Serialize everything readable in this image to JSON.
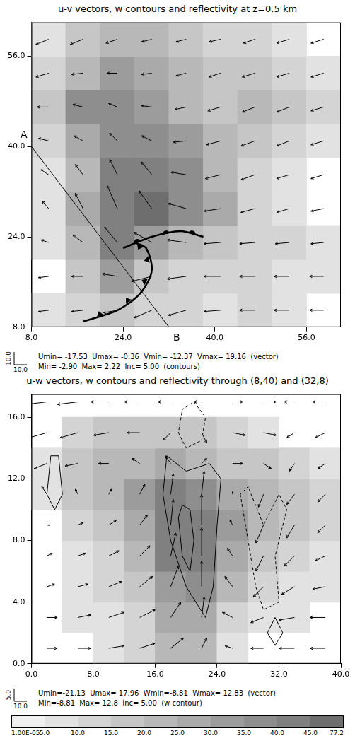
{
  "chart_data": [
    {
      "type": "quiver",
      "title": "u-v vectors, w contours and reflectivity at z=0.5 km",
      "xlim": [
        8,
        62
      ],
      "ylim": [
        8,
        62
      ],
      "xticks": [
        {
          "value": 8,
          "label": "8.0"
        },
        {
          "value": 24,
          "label": "24.0"
        },
        {
          "value": 40,
          "label": "40.0"
        },
        {
          "value": 56,
          "label": "56.0"
        }
      ],
      "yticks": [
        {
          "value": 8,
          "label": "8.0"
        },
        {
          "value": 24,
          "label": "24.0"
        },
        {
          "value": 40,
          "label": "40.0"
        },
        {
          "value": 56,
          "label": "56.0"
        }
      ],
      "grid": false,
      "reflectivity": {
        "x_edges": [
          8,
          14,
          20,
          26,
          32,
          38,
          44,
          50,
          56,
          62
        ],
        "y_edges": [
          8,
          14,
          20,
          26,
          32,
          38,
          44,
          50,
          56,
          62
        ],
        "values": [
          [
            5,
            10,
            15,
            10,
            10,
            5,
            10,
            5,
            0
          ],
          [
            0,
            15,
            30,
            15,
            10,
            10,
            10,
            5,
            5
          ],
          [
            5,
            20,
            40,
            30,
            20,
            15,
            10,
            10,
            5
          ],
          [
            5,
            25,
            40,
            45,
            35,
            25,
            10,
            5,
            0
          ],
          [
            5,
            20,
            40,
            40,
            35,
            20,
            10,
            5,
            0
          ],
          [
            10,
            25,
            35,
            35,
            30,
            20,
            15,
            10,
            5
          ],
          [
            15,
            35,
            35,
            30,
            20,
            15,
            20,
            15,
            10
          ],
          [
            10,
            20,
            30,
            25,
            20,
            15,
            15,
            10,
            5
          ],
          [
            5,
            15,
            20,
            20,
            15,
            10,
            10,
            5,
            0
          ]
        ]
      },
      "vectors": {
        "x": [
          11,
          17,
          23,
          29,
          35,
          41,
          47,
          53,
          59
        ],
        "y": [
          11,
          17,
          23,
          29,
          35,
          41,
          47,
          53,
          59
        ],
        "u": [
          [
            -8,
            -9,
            -11,
            -14,
            -14,
            -13,
            -12,
            -12,
            -11
          ],
          [
            -8,
            -9,
            -12,
            -16,
            -15,
            -13,
            -12,
            -12,
            -11
          ],
          [
            -6,
            -8,
            -10,
            -14,
            -15,
            -13,
            -12,
            -11,
            -10
          ],
          [
            -5,
            -6,
            -8,
            -10,
            -14,
            -13,
            -11,
            -10,
            -10
          ],
          [
            -6,
            -6,
            -6,
            -8,
            -12,
            -12,
            -11,
            -10,
            -10
          ],
          [
            -8,
            -7,
            -6,
            -8,
            -10,
            -11,
            -11,
            -10,
            -10
          ],
          [
            -9,
            -8,
            -7,
            -8,
            -9,
            -10,
            -10,
            -10,
            -10
          ],
          [
            -10,
            -9,
            -8,
            -8,
            -8,
            -9,
            -10,
            -10,
            -10
          ],
          [
            -10,
            -10,
            -9,
            -8,
            -8,
            -9,
            -9,
            -10,
            -10
          ]
        ],
        "v": [
          [
            -1,
            -1,
            -2,
            -6,
            -4,
            -1,
            0,
            0,
            0
          ],
          [
            -1,
            0,
            2,
            -4,
            -2,
            0,
            0,
            0,
            0
          ],
          [
            2,
            6,
            12,
            8,
            2,
            -1,
            -1,
            -1,
            -1
          ],
          [
            6,
            12,
            18,
            14,
            4,
            -2,
            -3,
            -3,
            -2
          ],
          [
            4,
            8,
            12,
            10,
            2,
            -3,
            -4,
            -3,
            -3
          ],
          [
            2,
            4,
            6,
            4,
            -1,
            -3,
            -4,
            -4,
            -3
          ],
          [
            0,
            2,
            3,
            1,
            -2,
            -3,
            -4,
            -4,
            -3
          ],
          [
            -3,
            -1,
            0,
            -1,
            -2,
            -3,
            -3,
            -3,
            -3
          ],
          [
            -4,
            -4,
            -3,
            -2,
            -2,
            -2,
            -3,
            -3,
            -3
          ]
        ]
      },
      "vector_key": {
        "horizontal": {
          "value": 10,
          "label": "10.0"
        },
        "vertical": {
          "value": 10,
          "label": "10.0"
        }
      },
      "section": {
        "points": [
          [
            8,
            40
          ],
          [
            32,
            8
          ]
        ],
        "labels": [
          "A",
          "B"
        ]
      },
      "fronts": [
        {
          "marker": "triangle",
          "points": [
            [
              17,
              9
            ],
            [
              23,
              11
            ],
            [
              27,
              14
            ],
            [
              29,
              18
            ],
            [
              28,
              22
            ],
            [
              26,
              23
            ]
          ]
        },
        {
          "marker": "semicircle",
          "points": [
            [
              24,
              22
            ],
            [
              29,
              24
            ],
            [
              34,
              25
            ],
            [
              38,
              24
            ]
          ]
        }
      ],
      "contours": [],
      "vector_stats": [
        "Umin= -17.53",
        "Umax= -0.36",
        "Vmin= -12.37",
        "Vmax= 19.16",
        "(vector)"
      ],
      "contour_stats": [
        "Min= -2.90",
        "Max= 2.22",
        "Inc= 5.00",
        "(contours)"
      ]
    },
    {
      "type": "quiver",
      "title": "u-w vectors, w contours and reflectivity through (8,40) and (32,8)",
      "xlim": [
        0,
        40
      ],
      "ylim": [
        0,
        17.5
      ],
      "xticks": [
        {
          "value": 0,
          "label": "0.0"
        },
        {
          "value": 8,
          "label": "8.0"
        },
        {
          "value": 16,
          "label": "16.0"
        },
        {
          "value": 24,
          "label": "24.0"
        },
        {
          "value": 32,
          "label": "32.0"
        },
        {
          "value": 40,
          "label": "40.0"
        }
      ],
      "yticks": [
        {
          "value": 0,
          "label": "0.0"
        },
        {
          "value": 4,
          "label": "4.0"
        },
        {
          "value": 8,
          "label": "8.0"
        },
        {
          "value": 12,
          "label": "12.0"
        },
        {
          "value": 16,
          "label": "16.0"
        }
      ],
      "grid": false,
      "reflectivity": {
        "x_edges": [
          0,
          4,
          8,
          12,
          16,
          20,
          24,
          28,
          32,
          36,
          40
        ],
        "y_edges": [
          0,
          2,
          4,
          6,
          8,
          10,
          12,
          14,
          16
        ],
        "values": [
          [
            0,
            0,
            5,
            10,
            20,
            20,
            5,
            0,
            0,
            0
          ],
          [
            0,
            5,
            5,
            10,
            25,
            25,
            10,
            5,
            5,
            0
          ],
          [
            0,
            5,
            10,
            15,
            30,
            35,
            20,
            10,
            5,
            5
          ],
          [
            0,
            5,
            10,
            20,
            40,
            40,
            25,
            15,
            10,
            5
          ],
          [
            0,
            10,
            15,
            25,
            40,
            40,
            30,
            20,
            15,
            10
          ],
          [
            5,
            15,
            20,
            30,
            40,
            35,
            25,
            20,
            15,
            10
          ],
          [
            5,
            15,
            20,
            20,
            25,
            20,
            15,
            15,
            10,
            5
          ],
          [
            0,
            10,
            15,
            15,
            15,
            15,
            10,
            5,
            0,
            0
          ]
        ]
      },
      "vectors": {
        "x": [
          2,
          6,
          10,
          14,
          18,
          22,
          26,
          30,
          34,
          38
        ],
        "y": [
          1,
          3,
          5,
          7,
          9,
          11,
          13,
          15,
          17
        ],
        "u": [
          [
            8,
            10,
            12,
            12,
            10,
            4,
            -6,
            -10,
            -12,
            -12
          ],
          [
            8,
            10,
            12,
            12,
            8,
            2,
            -8,
            -10,
            -12,
            -12
          ],
          [
            6,
            8,
            10,
            10,
            6,
            0,
            -6,
            -8,
            -10,
            -10
          ],
          [
            4,
            6,
            8,
            8,
            4,
            0,
            -4,
            -6,
            -8,
            -8
          ],
          [
            2,
            4,
            6,
            6,
            2,
            0,
            -2,
            -6,
            -6,
            -6
          ],
          [
            -4,
            -2,
            2,
            4,
            2,
            2,
            0,
            -4,
            -6,
            -6
          ],
          [
            -10,
            -10,
            -8,
            -6,
            -4,
            4,
            8,
            6,
            -4,
            -6
          ],
          [
            -14,
            -14,
            -12,
            -10,
            -6,
            4,
            10,
            10,
            -6,
            -8
          ],
          [
            -16,
            -16,
            -14,
            -12,
            -10,
            -6,
            8,
            10,
            -8,
            -10
          ]
        ],
        "w": [
          [
            0,
            0,
            1,
            2,
            4,
            4,
            1,
            0,
            0,
            0
          ],
          [
            0,
            1,
            2,
            3,
            6,
            8,
            2,
            -2,
            -1,
            0
          ],
          [
            1,
            1,
            2,
            4,
            8,
            10,
            4,
            -4,
            -3,
            -1
          ],
          [
            1,
            1,
            2,
            4,
            9,
            11,
            3,
            -6,
            -4,
            -2
          ],
          [
            0,
            1,
            2,
            4,
            10,
            12,
            2,
            -7,
            -5,
            -3
          ],
          [
            3,
            2,
            2,
            4,
            8,
            9,
            1,
            -5,
            -4,
            -3
          ],
          [
            -2,
            -1,
            0,
            2,
            3,
            2,
            0,
            -2,
            -3,
            -2
          ],
          [
            -2,
            -2,
            -1,
            0,
            -3,
            -4,
            -1,
            -1,
            -2,
            -2
          ],
          [
            -1,
            -1,
            0,
            0,
            0,
            0,
            0,
            0,
            0,
            0
          ]
        ]
      },
      "vector_key": {
        "horizontal": {
          "value": 10,
          "label": "10.0"
        },
        "vertical": {
          "value": 5,
          "label": "5.0"
        }
      },
      "contours": [
        {
          "value": 5,
          "points": [
            [
              17.5,
              13.5
            ],
            [
              17,
              11
            ],
            [
              18,
              8
            ],
            [
              20,
              5
            ],
            [
              22.5,
              3
            ],
            [
              23.5,
              5
            ],
            [
              24,
              9
            ],
            [
              24.5,
              12
            ],
            [
              23,
              13
            ],
            [
              20,
              12.5
            ],
            [
              17.5,
              13.5
            ]
          ]
        },
        {
          "value": 10,
          "points": [
            [
              19,
              9.5
            ],
            [
              19.5,
              7
            ],
            [
              20.5,
              6
            ],
            [
              21,
              8
            ],
            [
              20.5,
              10
            ],
            [
              19.5,
              10.3
            ],
            [
              19,
              9.5
            ]
          ]
        },
        {
          "value": 5,
          "points": [
            [
              2.5,
              13.5
            ],
            [
              2,
              11
            ],
            [
              3,
              10
            ],
            [
              4,
              11
            ],
            [
              3.5,
              13.5
            ],
            [
              2.5,
              13.5
            ]
          ]
        },
        {
          "value": -5,
          "points": [
            [
              19,
              15
            ],
            [
              20,
              14
            ],
            [
              22,
              14.5
            ],
            [
              22.5,
              16
            ],
            [
              21,
              17
            ],
            [
              19.5,
              16.5
            ],
            [
              19,
              15
            ]
          ]
        },
        {
          "value": -5,
          "points": [
            [
              27,
              11
            ],
            [
              28,
              8
            ],
            [
              29,
              5
            ],
            [
              30,
              3.5
            ],
            [
              32,
              4
            ],
            [
              31.5,
              7
            ],
            [
              33,
              10
            ],
            [
              32,
              11
            ],
            [
              30,
              9
            ],
            [
              28,
              11.5
            ],
            [
              27,
              11
            ]
          ]
        },
        {
          "value": 5,
          "points": [
            [
              30.5,
              2
            ],
            [
              31.5,
              1.2
            ],
            [
              32.5,
              2
            ],
            [
              31.5,
              3
            ],
            [
              30.5,
              2
            ]
          ]
        }
      ],
      "vector_stats": [
        "Umin=-21.13",
        "Umax= 17.96",
        "Wmin=-8.81",
        "Wmax= 12.83",
        "(vector)"
      ],
      "contour_stats": [
        "Min=-8.81",
        "Max= 12.8",
        "Inc= 5.00",
        "(w contour)"
      ]
    }
  ],
  "colorbar": {
    "ticks": [
      {
        "value": 1e-05,
        "label": "1.00E-05"
      },
      {
        "value": 5,
        "label": "5.0"
      },
      {
        "value": 10,
        "label": "10.0"
      },
      {
        "value": 15,
        "label": "15.0"
      },
      {
        "value": 20,
        "label": "20.0"
      },
      {
        "value": 25,
        "label": "25.0"
      },
      {
        "value": 30,
        "label": "30.0"
      },
      {
        "value": 35,
        "label": "35.0"
      },
      {
        "value": 40,
        "label": "40.0"
      },
      {
        "value": 45,
        "label": "45.0"
      },
      {
        "value": 77.2,
        "label": "77.2"
      }
    ],
    "colors": [
      "#f0f0f0",
      "#e2e2e2",
      "#d4d4d4",
      "#c6c6c6",
      "#b8b8b8",
      "#aaaaaa",
      "#9c9c9c",
      "#8e8e8e",
      "#808080",
      "#6e6e6e"
    ]
  }
}
